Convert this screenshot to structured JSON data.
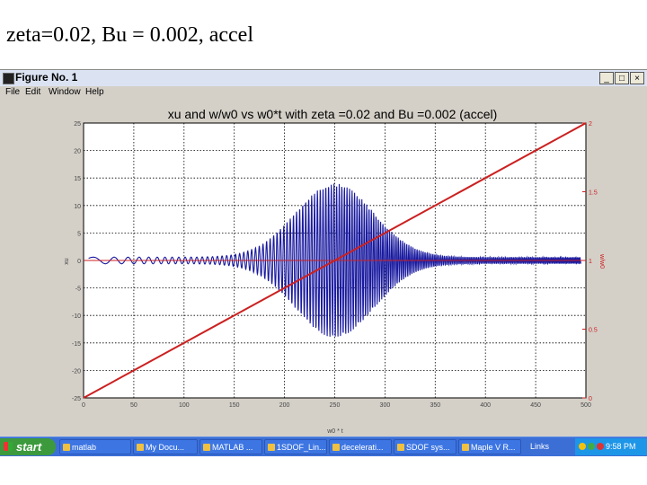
{
  "slide_title": "zeta=0.02, Bu = 0.002, accel",
  "window": {
    "title": "Figure No. 1",
    "buttons": {
      "minimize": "_",
      "maximize": "□",
      "close": "×"
    },
    "menu": [
      "File",
      "Edit",
      "Window",
      "Help"
    ]
  },
  "chart_data": {
    "type": "line",
    "title": "xu and w/w0 vs w0*t with zeta =0.02 and Bu =0.002 (accel)",
    "xlabel": "w0 * t",
    "ylabel": "xu",
    "y2label": "w/w0",
    "xlim": [
      0,
      500
    ],
    "ylim": [
      -25,
      25
    ],
    "y2lim": [
      0,
      2
    ],
    "x_ticks": [
      "0",
      "50",
      "100",
      "150",
      "200",
      "250",
      "300",
      "350",
      "400",
      "450",
      "500"
    ],
    "y_ticks": [
      "25",
      "20",
      "15",
      "10",
      "5",
      "0",
      "-5",
      "-10",
      "-15",
      "-20",
      "-25"
    ],
    "y2_ticks": [
      "2",
      "1.5",
      "1",
      "0.5",
      "0"
    ],
    "grid": true,
    "series": [
      {
        "name": "xu",
        "color": "#1a1aa0",
        "envelope_peak": 14,
        "center": 250
      },
      {
        "name": "w/w0",
        "color": "#cc2020",
        "x": [
          0,
          500
        ],
        "y2": [
          0,
          2
        ]
      }
    ]
  },
  "taskbar": {
    "start_label": "start",
    "tasks": [
      "matlab",
      "My Docu...",
      "MATLAB ...",
      "1SDOF_Lin...",
      "decelerati...",
      "SDOF sys...",
      "Maple V R..."
    ],
    "links_label": "Links",
    "clock": "9:58 PM"
  }
}
